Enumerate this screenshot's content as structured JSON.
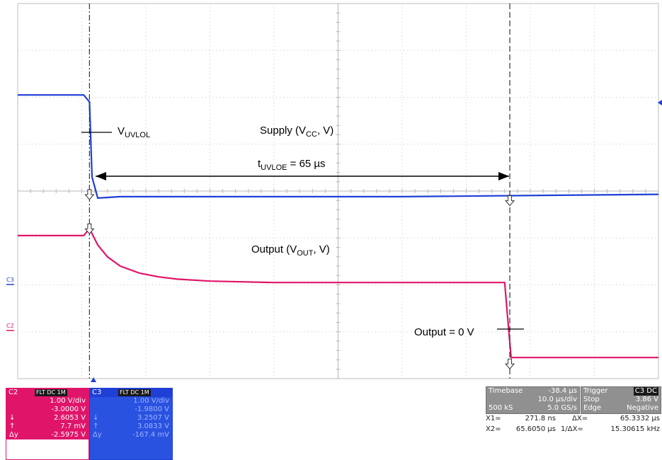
{
  "chart_data": {
    "type": "line",
    "x_divisions": 10,
    "y_divisions": 8,
    "grid": true,
    "timebase_per_div_us": 10.0,
    "series": [
      {
        "channel": "C3",
        "name": "Supply (VCC, V)",
        "color": "#1f3fd6",
        "x": [
          0,
          10.3,
          11.2,
          11.6,
          12.5,
          16,
          22,
          60,
          100
        ],
        "y": [
          6.05,
          6.05,
          5.9,
          4.3,
          3.85,
          3.88,
          3.88,
          3.88,
          3.93
        ]
      },
      {
        "channel": "C2",
        "name": "Output (VOUT, V)",
        "color": "#e0156a",
        "x": [
          0,
          10.3,
          11.2,
          12.5,
          14,
          16,
          19,
          22,
          25,
          30,
          40,
          76.0,
          76.4,
          77.0,
          100
        ],
        "y": [
          3.05,
          3.05,
          3.2,
          2.85,
          2.6,
          2.4,
          2.25,
          2.17,
          2.12,
          2.08,
          2.05,
          2.05,
          1.4,
          0.45,
          0.45
        ]
      }
    ],
    "cursors": {
      "x1": 11.2,
      "x2": 76.8
    }
  },
  "annotations": {
    "vuvlol_main": "V",
    "vuvlol_sub": "UVLOL",
    "supply_pre": "Supply (V",
    "supply_sub": "CC",
    "supply_post": ", V)",
    "tuvloe_pre": "t",
    "tuvloe_sub": "UVLOE",
    "tuvloe_post": " = 65 µs",
    "output_pre": "Output (V",
    "output_sub": "OUT",
    "output_post": ", V)",
    "output_zero": "Output = 0 V"
  },
  "markers": {
    "c3": "C3",
    "c2": "C2"
  },
  "ch2_panel": {
    "label": "C2",
    "tag": "FLT DC 1M",
    "color": "#e0156a",
    "rows": [
      {
        "k": "",
        "v": "1.00 V/div"
      },
      {
        "k": "",
        "v": "-3.0000 V"
      },
      {
        "k": "↓",
        "v": "2.6053 V"
      },
      {
        "k": "↑",
        "v": "7.7 mV"
      },
      {
        "k": "Δy",
        "v": "-2.5975 V"
      }
    ]
  },
  "ch3_panel": {
    "label": "C3",
    "tag": "FLT DC 1M",
    "color": "#1f3fd6",
    "rows": [
      {
        "k": "",
        "v": "1.00 V/div"
      },
      {
        "k": "",
        "v": "-1.9800 V"
      },
      {
        "k": "↓",
        "v": "3.2507 V"
      },
      {
        "k": "↑",
        "v": "3.0833 V"
      },
      {
        "k": "Δy",
        "v": "-167.4 mV"
      }
    ]
  },
  "timebase": {
    "label": "Timebase",
    "delay": "-38.4 µs",
    "per_div": "10.0 µs/div",
    "samples": "500 kS",
    "rate": "5.0 GS/s"
  },
  "trigger": {
    "label": "Trigger",
    "badge": "C3 DC",
    "mode": "Stop",
    "level": "3.86 V",
    "type": "Edge",
    "slope": "Negative"
  },
  "cursor_readout": {
    "x1_label": "X1=",
    "x1_value": "271.8 ns",
    "dx_label": "ΔX=",
    "dx_value": "65.3332 µs",
    "x2_label": "X2=",
    "x2_value": "65.6050 µs",
    "inv_label": "1/ΔX=",
    "inv_value": "15.30615 kHz"
  }
}
